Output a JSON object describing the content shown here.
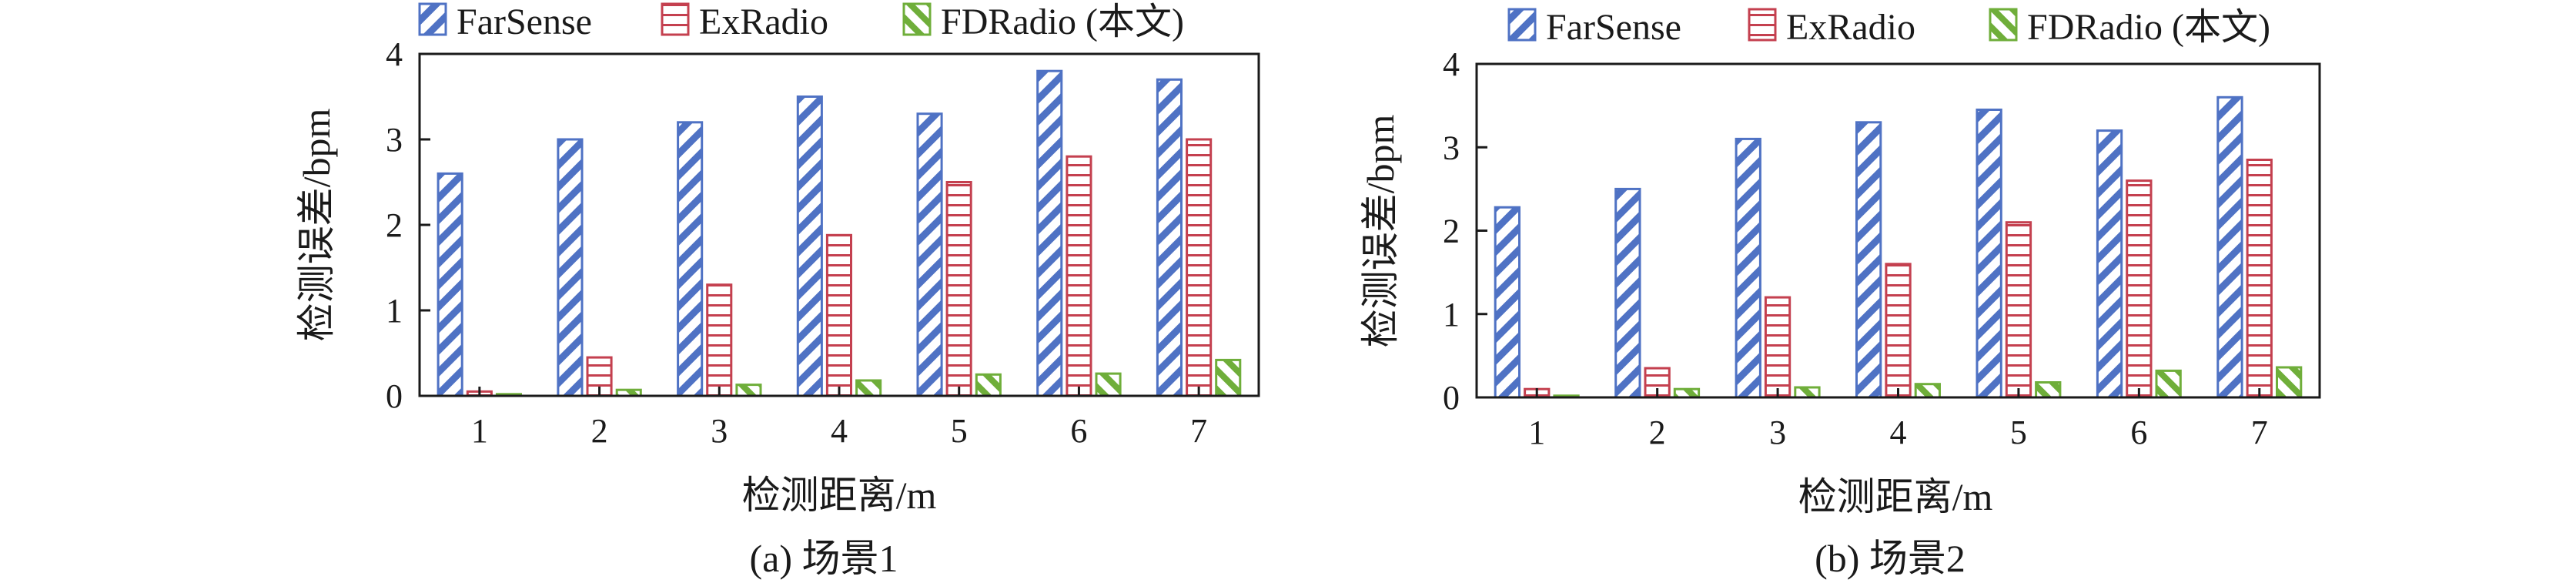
{
  "colors": {
    "farsense": "#4f72c4",
    "exradio": "#c4404f",
    "fdradio": "#6fae3a"
  },
  "chart_data": [
    {
      "type": "bar",
      "caption": "(a)  场景1",
      "xlabel": "检测距离/m",
      "ylabel": "检测误差/bpm",
      "ylim": [
        0,
        4
      ],
      "yticks": [
        "0",
        "1",
        "2",
        "3",
        "4"
      ],
      "categories": [
        "1",
        "2",
        "3",
        "4",
        "5",
        "6",
        "7"
      ],
      "legend_position": "top",
      "series": [
        {
          "name": "FarSense",
          "values": [
            2.6,
            3.0,
            3.2,
            3.5,
            3.3,
            3.8,
            3.7
          ]
        },
        {
          "name": "ExRadio",
          "values": [
            0.05,
            0.45,
            1.3,
            1.88,
            2.5,
            2.8,
            3.0
          ]
        },
        {
          "name": "FDRadio (本文)",
          "values": [
            0.02,
            0.07,
            0.13,
            0.18,
            0.25,
            0.26,
            0.42
          ]
        }
      ]
    },
    {
      "type": "bar",
      "caption": "(b)  场景2",
      "xlabel": "检测距离/m",
      "ylabel": "检测误差/bpm",
      "ylim": [
        0,
        4
      ],
      "yticks": [
        "0",
        "1",
        "2",
        "3",
        "4"
      ],
      "categories": [
        "1",
        "2",
        "3",
        "4",
        "5",
        "6",
        "7"
      ],
      "legend_position": "top",
      "series": [
        {
          "name": "FarSense",
          "values": [
            2.28,
            2.5,
            3.1,
            3.3,
            3.45,
            3.2,
            3.6
          ]
        },
        {
          "name": "ExRadio",
          "values": [
            0.1,
            0.35,
            1.2,
            1.6,
            2.1,
            2.6,
            2.85
          ]
        },
        {
          "name": "FDRadio (本文)",
          "values": [
            0.02,
            0.1,
            0.12,
            0.16,
            0.18,
            0.32,
            0.36
          ]
        }
      ]
    }
  ]
}
